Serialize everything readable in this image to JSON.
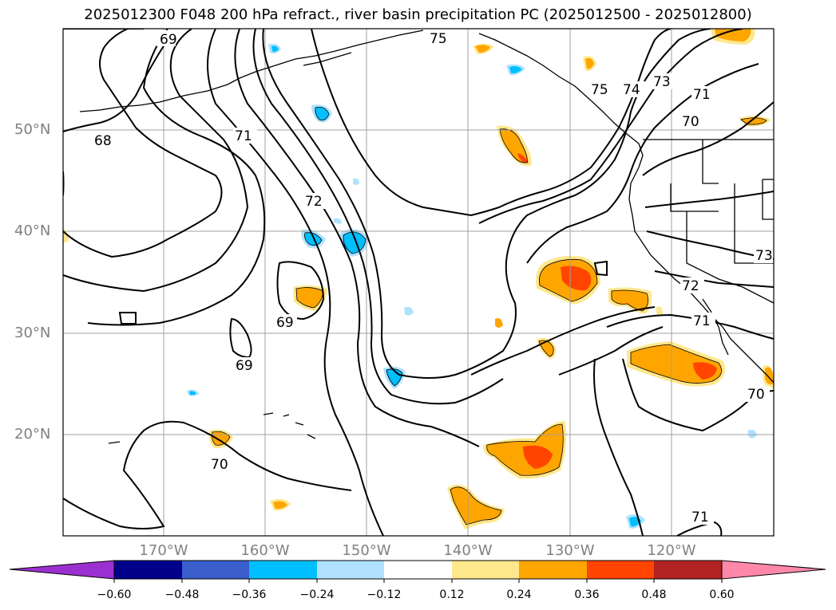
{
  "title": "2025012300 F048 200 hPa refract., river basin precipitation PC (2025012500 - 2025012800)",
  "lat_labels": [
    "50°N",
    "40°N",
    "30°N",
    "20°N"
  ],
  "lon_labels": [
    "170°W",
    "160°W",
    "150°W",
    "140°W",
    "130°W",
    "120°W"
  ],
  "contour_labels": [
    "69",
    "68",
    "71",
    "72",
    "69",
    "69",
    "70",
    "75",
    "75",
    "74",
    "73",
    "71",
    "70",
    "73",
    "72",
    "71",
    "70",
    "71"
  ],
  "colorbar": {
    "ticks": [
      "−0.60",
      "−0.48",
      "−0.36",
      "−0.24",
      "−0.12",
      "0.12",
      "0.24",
      "0.36",
      "0.48",
      "0.60"
    ],
    "colors": [
      "#9b30d0",
      "#00008b",
      "#3a5fcd",
      "#00bfff",
      "#b0e2ff",
      "#ffffff",
      "#ffe78c",
      "#ffa500",
      "#ff4500",
      "#b22222",
      "#ff88aa"
    ]
  },
  "colors": {
    "positive_light": "#ffe78c",
    "positive_mid": "#ffa500",
    "positive_strong": "#ff4500",
    "negative_light": "#b0e2ff",
    "negative_mid": "#00bfff"
  }
}
